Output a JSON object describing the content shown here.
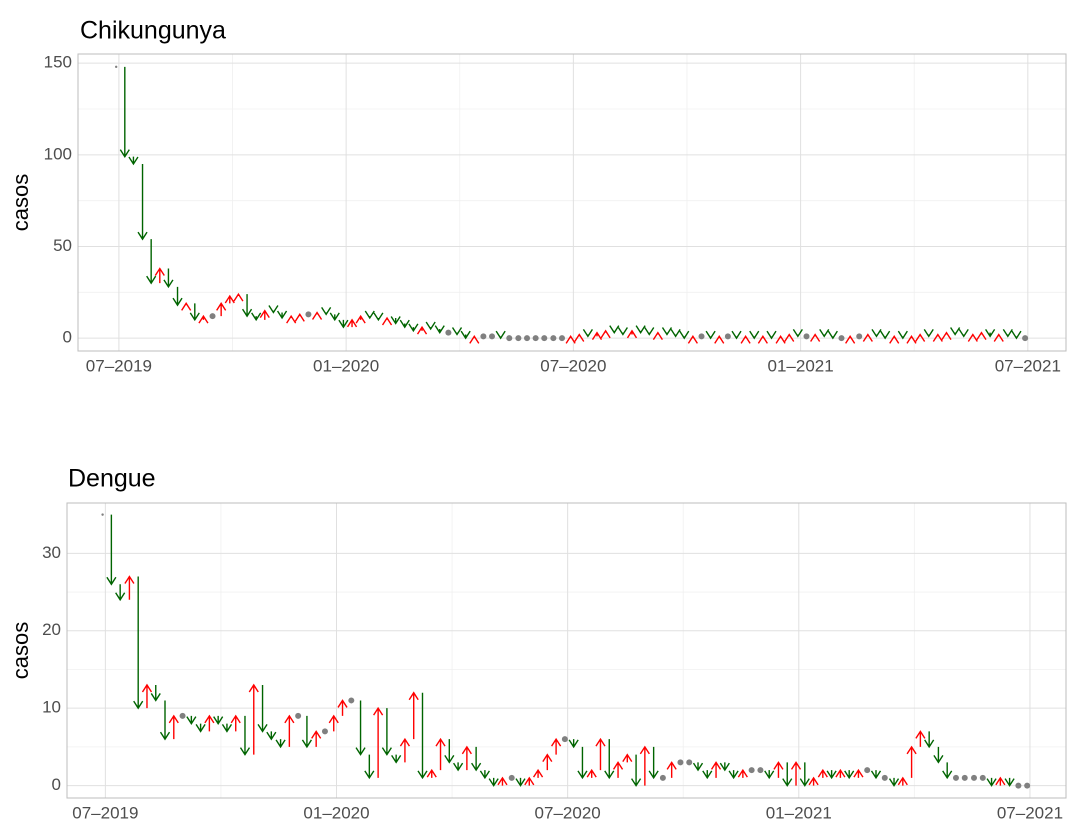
{
  "chart_data": [
    {
      "type": "arrow-change",
      "title": "Chikungunya",
      "y_label": "casos",
      "up_color": "red",
      "down_color": "darkgreen",
      "same_color": "grey",
      "grid": true,
      "xlim": [
        2019.41,
        2021.584
      ],
      "ylim": [
        -7,
        155
      ],
      "xticks": [
        {
          "value": 2019.5,
          "label": "07–2019"
        },
        {
          "value": 2020,
          "label": "01–2020"
        },
        {
          "value": 2020.5,
          "label": "07–2020"
        },
        {
          "value": 2021,
          "label": "01–2021"
        },
        {
          "value": 2021.5,
          "label": "07–2021"
        }
      ],
      "yticks": [
        0,
        50,
        100,
        150
      ],
      "x": [
        2019.494,
        2019.513,
        2019.532,
        2019.552,
        2019.571,
        2019.59,
        2019.609,
        2019.629,
        2019.648,
        2019.667,
        2019.686,
        2019.706,
        2019.725,
        2019.744,
        2019.763,
        2019.782,
        2019.802,
        2019.821,
        2019.84,
        2019.859,
        2019.879,
        2019.898,
        2019.917,
        2019.936,
        2019.956,
        2019.975,
        2019.994,
        2020.013,
        2020.032,
        2020.052,
        2020.071,
        2020.09,
        2020.109,
        2020.129,
        2020.148,
        2020.167,
        2020.186,
        2020.206,
        2020.225,
        2020.244,
        2020.263,
        2020.282,
        2020.302,
        2020.321,
        2020.34,
        2020.359,
        2020.379,
        2020.398,
        2020.417,
        2020.436,
        2020.456,
        2020.475,
        2020.494,
        2020.513,
        2020.532,
        2020.552,
        2020.571,
        2020.59,
        2020.609,
        2020.629,
        2020.648,
        2020.667,
        2020.686,
        2020.706,
        2020.725,
        2020.744,
        2020.763,
        2020.782,
        2020.802,
        2020.821,
        2020.84,
        2020.859,
        2020.879,
        2020.898,
        2020.917,
        2020.936,
        2020.956,
        2020.975,
        2020.994,
        2021.013,
        2021.032,
        2021.052,
        2021.071,
        2021.09,
        2021.109,
        2021.129,
        2021.148,
        2021.167,
        2021.186,
        2021.206,
        2021.225,
        2021.244,
        2021.263,
        2021.282,
        2021.302,
        2021.321,
        2021.34,
        2021.359,
        2021.379,
        2021.398,
        2021.417,
        2021.436,
        2021.456,
        2021.475,
        2021.494
      ],
      "values": [
        148,
        99,
        95,
        54,
        30,
        38,
        28,
        18,
        19,
        10,
        12,
        12,
        19,
        23,
        24,
        12,
        10,
        15,
        14,
        11,
        12,
        13,
        13,
        14,
        13,
        10,
        6,
        10,
        12,
        11,
        10,
        11,
        8,
        6,
        4,
        6,
        5,
        3,
        3,
        2,
        0,
        1,
        1,
        1,
        0,
        0,
        0,
        0,
        0,
        0,
        0,
        0,
        1,
        2,
        1,
        3,
        4,
        3,
        2,
        4,
        3,
        2,
        3,
        2,
        1,
        0,
        1,
        1,
        0,
        1,
        1,
        0,
        1,
        0,
        1,
        0,
        1,
        2,
        1,
        1,
        2,
        1,
        0,
        0,
        1,
        1,
        2,
        1,
        0,
        1,
        0,
        1,
        2,
        1,
        2,
        3,
        2,
        1,
        2,
        3,
        1,
        2,
        1,
        0,
        0
      ]
    },
    {
      "type": "arrow-change",
      "title": "Dengue",
      "y_label": "casos",
      "up_color": "red",
      "down_color": "darkgreen",
      "same_color": "grey",
      "grid": true,
      "xlim": [
        2019.417,
        2021.578
      ],
      "ylim": [
        -1.6,
        36.5
      ],
      "xticks": [
        {
          "value": 2019.5,
          "label": "07–2019"
        },
        {
          "value": 2020,
          "label": "01–2020"
        },
        {
          "value": 2020.5,
          "label": "07–2020"
        },
        {
          "value": 2021,
          "label": "01–2021"
        },
        {
          "value": 2021.5,
          "label": "07–2021"
        }
      ],
      "yticks": [
        0,
        10,
        20,
        30
      ],
      "x": [
        2019.494,
        2019.513,
        2019.532,
        2019.552,
        2019.571,
        2019.59,
        2019.609,
        2019.629,
        2019.648,
        2019.667,
        2019.686,
        2019.706,
        2019.725,
        2019.744,
        2019.763,
        2019.782,
        2019.802,
        2019.821,
        2019.84,
        2019.859,
        2019.879,
        2019.898,
        2019.917,
        2019.936,
        2019.956,
        2019.975,
        2019.994,
        2020.013,
        2020.032,
        2020.052,
        2020.071,
        2020.09,
        2020.109,
        2020.129,
        2020.148,
        2020.167,
        2020.186,
        2020.206,
        2020.225,
        2020.244,
        2020.263,
        2020.282,
        2020.302,
        2020.321,
        2020.34,
        2020.359,
        2020.379,
        2020.398,
        2020.417,
        2020.436,
        2020.456,
        2020.475,
        2020.494,
        2020.513,
        2020.532,
        2020.552,
        2020.571,
        2020.59,
        2020.609,
        2020.629,
        2020.648,
        2020.667,
        2020.686,
        2020.706,
        2020.725,
        2020.744,
        2020.763,
        2020.782,
        2020.802,
        2020.821,
        2020.84,
        2020.859,
        2020.879,
        2020.898,
        2020.917,
        2020.936,
        2020.956,
        2020.975,
        2020.994,
        2021.013,
        2021.032,
        2021.052,
        2021.071,
        2021.09,
        2021.109,
        2021.129,
        2021.148,
        2021.167,
        2021.186,
        2021.206,
        2021.225,
        2021.244,
        2021.263,
        2021.282,
        2021.302,
        2021.321,
        2021.34,
        2021.359,
        2021.379,
        2021.398,
        2021.417,
        2021.436,
        2021.456,
        2021.475,
        2021.494
      ],
      "values": [
        35,
        26,
        24,
        27,
        10,
        13,
        11,
        6,
        9,
        9,
        8,
        7,
        9,
        8,
        7,
        9,
        4,
        13,
        7,
        6,
        5,
        9,
        9,
        5,
        7,
        7,
        9,
        11,
        11,
        4,
        1,
        10,
        4,
        3,
        6,
        12,
        1,
        2,
        6,
        3,
        2,
        5,
        2,
        1,
        0,
        1,
        1,
        0,
        1,
        2,
        4,
        6,
        6,
        5,
        1,
        2,
        6,
        1,
        3,
        4,
        0,
        5,
        1,
        1,
        3,
        3,
        3,
        2,
        1,
        3,
        2,
        1,
        2,
        2,
        2,
        1,
        3,
        0,
        3,
        0,
        1,
        2,
        1,
        2,
        1,
        2,
        2,
        1,
        1,
        0,
        1,
        5,
        7,
        5,
        3,
        1,
        1,
        1,
        1,
        1,
        0,
        1,
        0,
        0,
        0
      ]
    }
  ]
}
